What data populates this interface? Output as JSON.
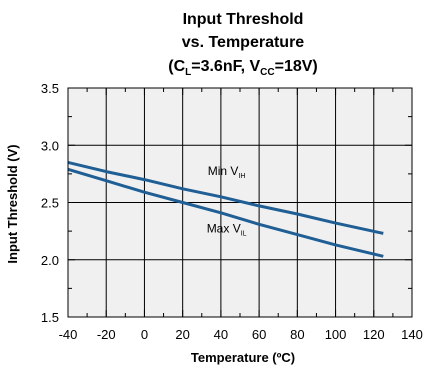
{
  "chart_data": {
    "type": "line",
    "title_lines": [
      "Input Threshold",
      "vs. Temperature"
    ],
    "condition": {
      "open": "(C",
      "cl_sub": "L",
      "mid": "=3.6nF, V",
      "vcc_sub": "CC",
      "close": "=18V)"
    },
    "xlabel": "Temperature (ºC)",
    "ylabel": "Input Threshold (V)",
    "xlim": [
      -40,
      140
    ],
    "ylim": [
      1.5,
      3.5
    ],
    "x_ticks": [
      "-40",
      "-20",
      "0",
      "20",
      "40",
      "60",
      "80",
      "100",
      "120",
      "140"
    ],
    "y_ticks": [
      "1.5",
      "2.0",
      "2.5",
      "3.0",
      "3.5"
    ],
    "grid": true,
    "series": [
      {
        "x": [
          -40,
          -20,
          0,
          20,
          40,
          60,
          80,
          100,
          125
        ],
        "values": [
          2.85,
          2.77,
          2.7,
          2.62,
          2.55,
          2.47,
          2.4,
          2.32,
          2.23
        ]
      },
      {
        "x": [
          -40,
          -20,
          0,
          20,
          40,
          60,
          80,
          100,
          125
        ],
        "values": [
          2.79,
          2.69,
          2.59,
          2.5,
          2.41,
          2.31,
          2.22,
          2.13,
          2.03
        ]
      }
    ],
    "annotations": [
      {
        "main": "Min V",
        "sub": "IH",
        "x": 43,
        "y": 2.74
      },
      {
        "main": "Max V",
        "sub": "IL",
        "x": 43,
        "y": 2.24
      }
    ],
    "colors": {
      "line": "#1f5f95",
      "plot_bg": "#f0f0f0",
      "grid": "#000000"
    }
  }
}
